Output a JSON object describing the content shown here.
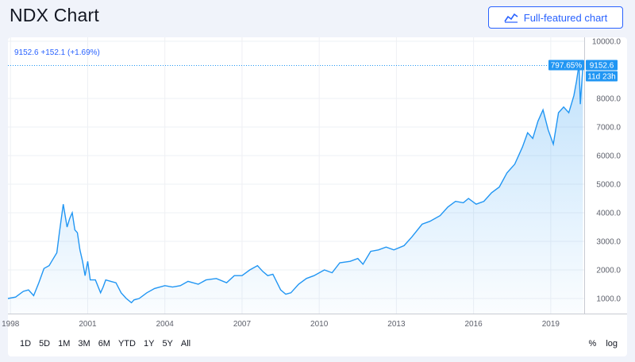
{
  "header": {
    "title": "NDX Chart",
    "full_chart_label": "Full-featured chart"
  },
  "legend": "9152.6  +152.1 (+1.69%)",
  "tags": {
    "percent": "797.65%",
    "price": "9152.6",
    "countdown": "11d 23h"
  },
  "ranges": [
    "1D",
    "5D",
    "1M",
    "3M",
    "6M",
    "YTD",
    "1Y",
    "5Y",
    "All"
  ],
  "scales": [
    "%",
    "log"
  ],
  "colors": {
    "line": "#2196f3",
    "fill_top": "#2196f3",
    "accent": "#2962ff",
    "tag": "#2196f3"
  },
  "chart_data": {
    "type": "area",
    "title": "NDX Chart",
    "x_ticks": [
      "1998",
      "2001",
      "2004",
      "2007",
      "2010",
      "2013",
      "2016",
      "2019"
    ],
    "y_ticks": [
      "1000.0",
      "2000.0",
      "3000.0",
      "4000.0",
      "5000.0",
      "6000.0",
      "7000.0",
      "8000.0",
      "10000.0"
    ],
    "ylim": [
      0,
      10000
    ],
    "xlim": [
      1997.9,
      2020.3
    ],
    "grid": true,
    "last_value": 9152.6,
    "series": [
      {
        "x": [
          1997.9,
          1998.2,
          1998.5,
          1998.7,
          1998.9,
          1999.1,
          1999.3,
          1999.5,
          1999.6,
          1999.8,
          1999.9,
          2000.05,
          2000.2,
          2000.3,
          2000.4,
          2000.5,
          2000.6,
          2000.7,
          2000.8,
          2000.9,
          2001.0,
          2001.1,
          2001.2,
          2001.3,
          2001.5,
          2001.6,
          2001.7,
          2001.9,
          2002.1,
          2002.3,
          2002.5,
          2002.7,
          2002.8,
          2003.0,
          2003.3,
          2003.6,
          2004.0,
          2004.3,
          2004.6,
          2004.9,
          2005.3,
          2005.6,
          2006.0,
          2006.4,
          2006.7,
          2007.0,
          2007.3,
          2007.6,
          2007.8,
          2008.0,
          2008.2,
          2008.5,
          2008.7,
          2008.9,
          2009.2,
          2009.5,
          2009.8,
          2010.2,
          2010.5,
          2010.8,
          2011.2,
          2011.5,
          2011.7,
          2012.0,
          2012.3,
          2012.6,
          2012.9,
          2013.3,
          2013.6,
          2014.0,
          2014.3,
          2014.7,
          2015.0,
          2015.3,
          2015.6,
          2015.8,
          2016.1,
          2016.4,
          2016.7,
          2017.0,
          2017.3,
          2017.6,
          2017.9,
          2018.1,
          2018.3,
          2018.5,
          2018.7,
          2018.9,
          2019.1,
          2019.3,
          2019.5,
          2019.7,
          2019.9,
          2020.0,
          2020.1,
          2020.15,
          2020.25
        ],
        "values": [
          1000,
          1050,
          1250,
          1300,
          1100,
          1550,
          2050,
          2150,
          2300,
          2600,
          3300,
          4300,
          3500,
          3800,
          4000,
          3400,
          3300,
          2700,
          2300,
          1800,
          2300,
          1650,
          1650,
          1650,
          1200,
          1400,
          1650,
          1600,
          1550,
          1200,
          1000,
          850,
          950,
          1000,
          1200,
          1350,
          1450,
          1400,
          1450,
          1600,
          1500,
          1650,
          1700,
          1550,
          1800,
          1800,
          2000,
          2150,
          1950,
          1800,
          1850,
          1300,
          1150,
          1200,
          1500,
          1700,
          1800,
          2000,
          1900,
          2250,
          2300,
          2400,
          2200,
          2650,
          2700,
          2800,
          2700,
          2850,
          3150,
          3600,
          3700,
          3900,
          4200,
          4400,
          4350,
          4500,
          4300,
          4400,
          4700,
          4900,
          5400,
          5700,
          6300,
          6800,
          6600,
          7200,
          7600,
          6900,
          6400,
          7500,
          7700,
          7500,
          8100,
          8600,
          9200,
          7800,
          9152.6
        ]
      }
    ]
  }
}
